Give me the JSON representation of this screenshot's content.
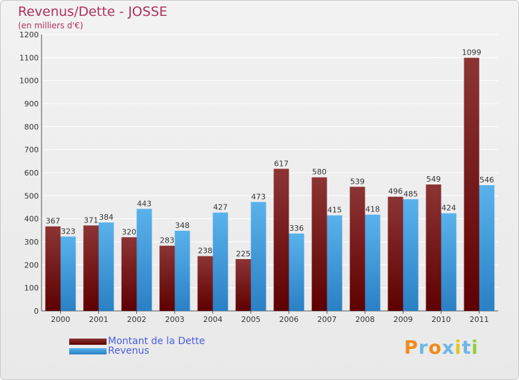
{
  "title": "Revenus/Dette - JOSSE",
  "unit_label": "(en milliers d'€)",
  "logo_text": "Proxiti",
  "colors": {
    "title": "#b03060",
    "debt_top": "#8c3434",
    "debt_bottom": "#5e0000",
    "revenue_top": "#5ab2ec",
    "revenue_bottom": "#2a80c4",
    "legend_text": "#4a5ee0"
  },
  "chart_data": {
    "type": "bar",
    "title": "Revenus/Dette - JOSSE",
    "ylabel": "(en milliers d'€)",
    "xlabel": "",
    "categories": [
      "2000",
      "2001",
      "2002",
      "2003",
      "2004",
      "2005",
      "2006",
      "2007",
      "2008",
      "2009",
      "2010",
      "2011"
    ],
    "series": [
      {
        "name": "Montant de la Dette",
        "values": [
          367,
          371,
          320,
          283,
          238,
          225,
          617,
          580,
          539,
          496,
          549,
          1099
        ]
      },
      {
        "name": "Revenus",
        "values": [
          323,
          384,
          443,
          348,
          427,
          473,
          336,
          415,
          418,
          485,
          424,
          546
        ]
      }
    ],
    "ylim": [
      0,
      1200
    ],
    "yticks": [
      0,
      100,
      200,
      300,
      400,
      500,
      600,
      700,
      800,
      900,
      1000,
      1100,
      1200
    ],
    "grid": true,
    "legend": "bottom-left"
  }
}
